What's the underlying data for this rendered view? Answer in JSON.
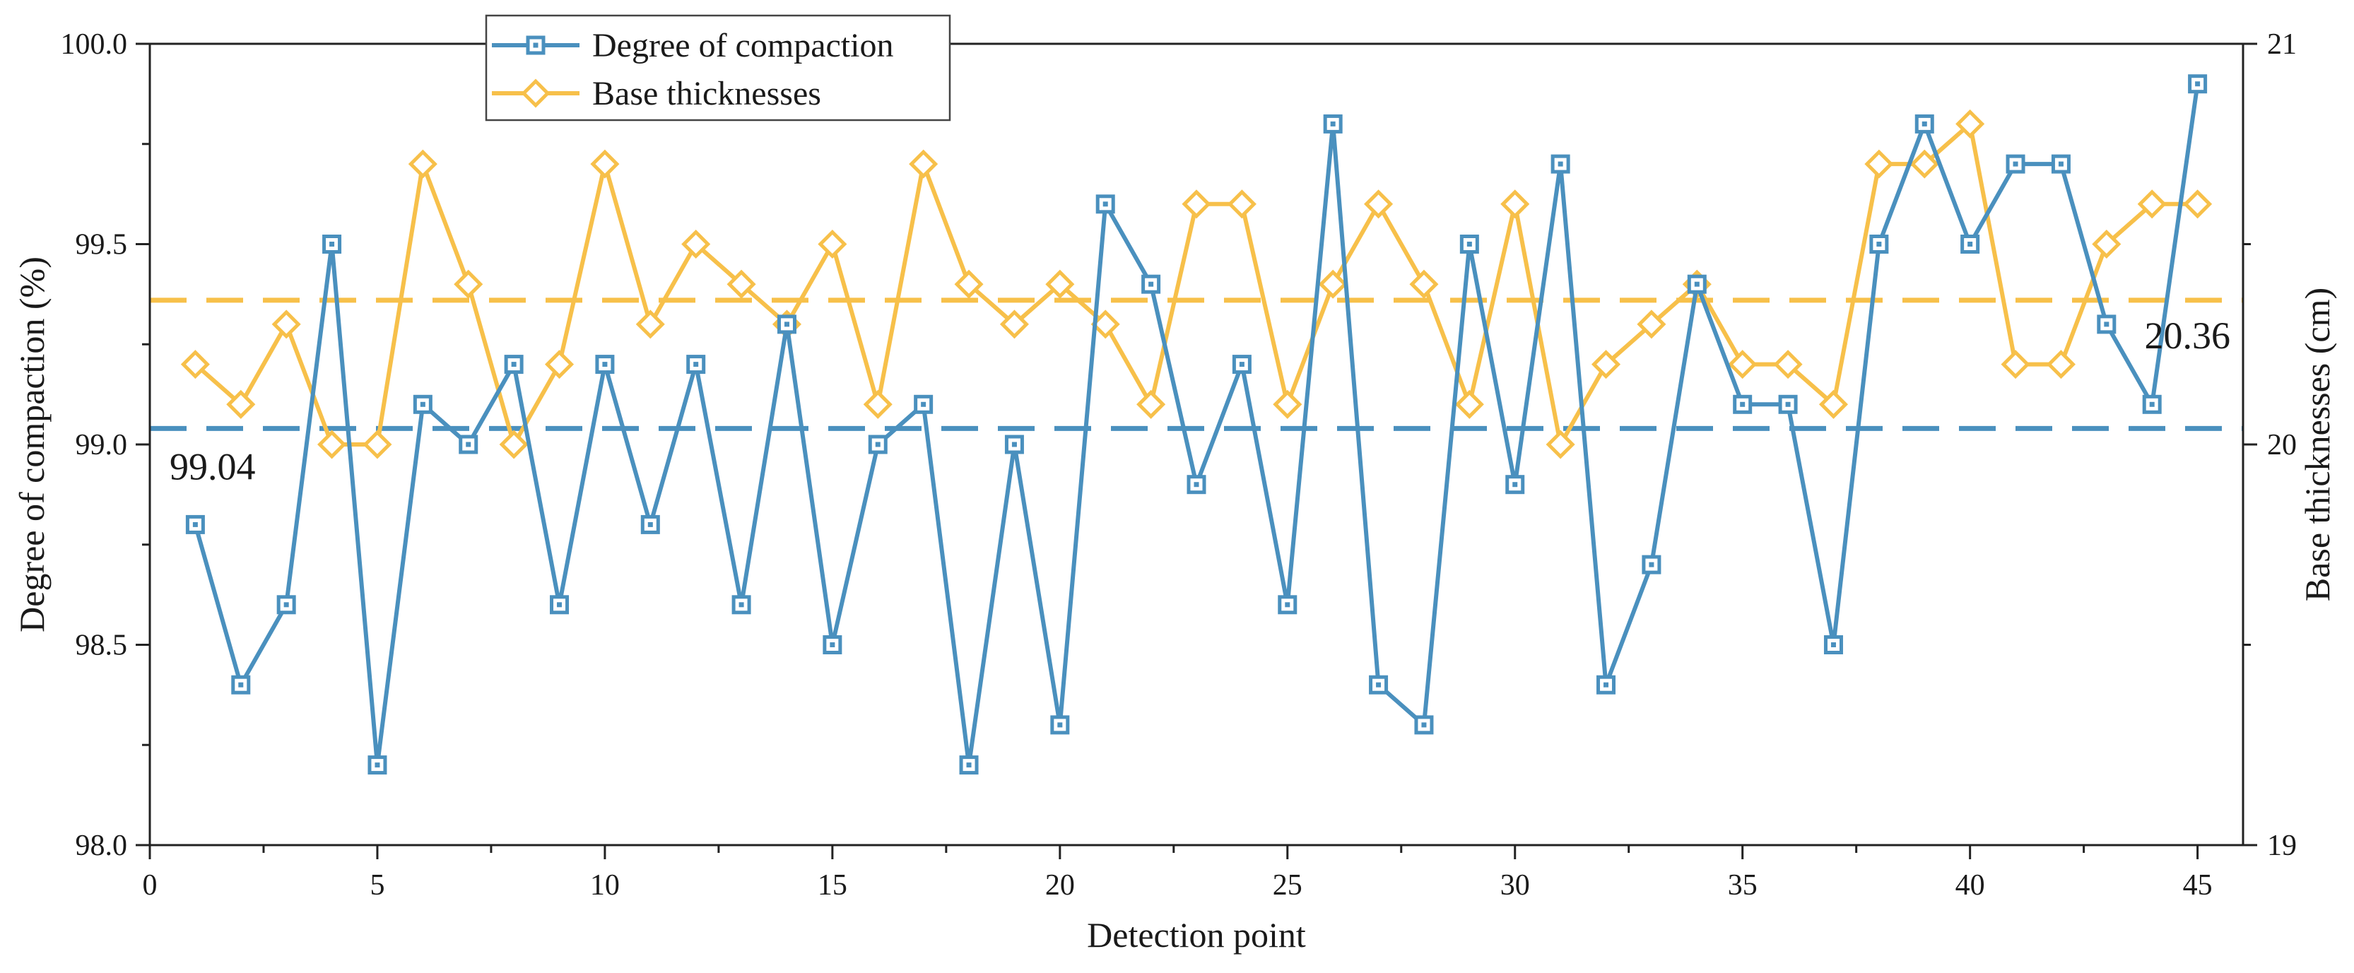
{
  "chart_data": {
    "type": "line",
    "xlabel": "Detection point",
    "ylabel_left": "Degree of compaction (%)",
    "ylabel_right": "Base thicknesses (cm)",
    "xlim": [
      0,
      46
    ],
    "ylim_left": [
      98.0,
      100.0
    ],
    "ylim_right": [
      19,
      21
    ],
    "x_ticks": [
      "0",
      "5",
      "10",
      "15",
      "20",
      "25",
      "30",
      "35",
      "40",
      "45"
    ],
    "y_ticks_left": [
      "98.0",
      "98.5",
      "99.0",
      "99.5",
      "100.0"
    ],
    "y_ticks_right": [
      "19",
      "20",
      "21"
    ],
    "x": [
      1,
      2,
      3,
      4,
      5,
      6,
      7,
      8,
      9,
      10,
      11,
      12,
      13,
      14,
      15,
      16,
      17,
      18,
      19,
      20,
      21,
      22,
      23,
      24,
      25,
      26,
      27,
      28,
      29,
      30,
      31,
      32,
      33,
      34,
      35,
      36,
      37,
      38,
      39,
      40,
      41,
      42,
      43,
      44,
      45
    ],
    "series": [
      {
        "name": "Degree of compaction",
        "axis": "left",
        "marker": "square",
        "color": "#4A90BE",
        "values": [
          98.8,
          98.4,
          98.6,
          99.5,
          98.2,
          99.1,
          99.0,
          99.2,
          98.6,
          99.2,
          98.8,
          99.2,
          98.6,
          99.3,
          98.5,
          99.0,
          99.1,
          98.2,
          99.0,
          98.3,
          99.6,
          99.4,
          98.9,
          99.2,
          98.6,
          99.8,
          98.4,
          98.3,
          99.5,
          98.9,
          99.7,
          98.4,
          98.7,
          99.4,
          99.1,
          99.1,
          98.5,
          99.5,
          99.8,
          99.5,
          99.7,
          99.7,
          99.3,
          99.1,
          99.9
        ]
      },
      {
        "name": "Base thicknesses",
        "axis": "right",
        "marker": "diamond",
        "color": "#F7C04A",
        "values": [
          20.2,
          20.1,
          20.3,
          20.0,
          20.0,
          20.7,
          20.4,
          20.0,
          20.2,
          20.7,
          20.3,
          20.5,
          20.4,
          20.3,
          20.5,
          20.1,
          20.7,
          20.4,
          20.3,
          20.4,
          20.3,
          20.1,
          20.6,
          20.6,
          20.1,
          20.4,
          20.6,
          20.4,
          20.1,
          20.6,
          20.0,
          20.2,
          20.3,
          20.4,
          20.2,
          20.2,
          20.1,
          20.7,
          20.7,
          20.8,
          20.2,
          20.2,
          20.5,
          20.6,
          20.6
        ]
      }
    ],
    "reference_lines": [
      {
        "axis": "left",
        "value": 99.04,
        "label": "99.04",
        "color": "#4A90BE"
      },
      {
        "axis": "right",
        "value": 20.36,
        "label": "20.36",
        "color": "#F7C04A"
      }
    ],
    "legend": {
      "position": "top-left-center"
    }
  }
}
